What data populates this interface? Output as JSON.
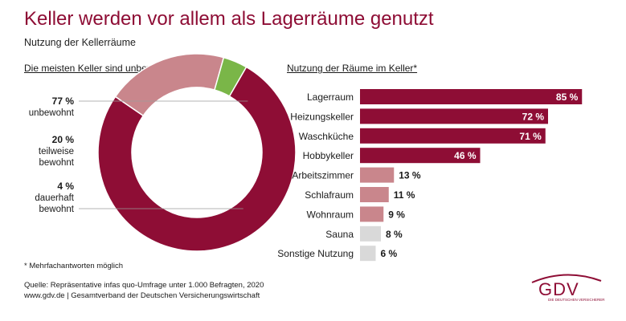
{
  "title": "Keller werden vor allem als Lagerräume genutzt",
  "subtitle": "Nutzung der Kellerräume",
  "colors": {
    "primary": "#8e0d35",
    "light": "#c9868c",
    "green": "#7ab648",
    "grey": "#d9d9d9"
  },
  "chart_data": [
    {
      "type": "pie",
      "title": "Die meisten Keller sind unbewohnt",
      "slices": [
        {
          "pct_label": "77 %",
          "label_lines": [
            "unbewohnt"
          ],
          "value": 77,
          "color": "#8e0d35"
        },
        {
          "pct_label": "20 %",
          "label_lines": [
            "teilweise",
            "bewohnt"
          ],
          "value": 20,
          "color": "#c9868c"
        },
        {
          "pct_label": "4 %",
          "label_lines": [
            "dauerhaft",
            "bewohnt"
          ],
          "value": 4,
          "color": "#7ab648"
        }
      ]
    },
    {
      "type": "bar",
      "title": "Nutzung der Räume im Keller*",
      "xlim": [
        0,
        100
      ],
      "categories": [
        "Lagerraum",
        "Heizungskeller",
        "Waschküche",
        "Hobbykeller",
        "Arbeitszimmer",
        "Schlafraum",
        "Wohnraum",
        "Sauna",
        "Sonstige Nutzung"
      ],
      "values": [
        85,
        72,
        71,
        46,
        13,
        11,
        9,
        8,
        6
      ],
      "value_labels": [
        "85 %",
        "72 %",
        "71 %",
        "46 %",
        "13 %",
        "11 %",
        "9 %",
        "8 %",
        "6 %"
      ],
      "colors": [
        "#8e0d35",
        "#8e0d35",
        "#8e0d35",
        "#8e0d35",
        "#c9868c",
        "#c9868c",
        "#c9868c",
        "#d9d9d9",
        "#d9d9d9"
      ]
    }
  ],
  "footnote": "* Mehrfachantworten möglich",
  "source_line1": "Quelle: Repräsentative infas quo-Umfrage unter 1.000 Befragten, 2020",
  "source_line2": "www.gdv.de | Gesamtverband der Deutschen Versicherungswirtschaft",
  "logo": {
    "text": "GDV",
    "tagline": "DIE DEUTSCHEN VERSICHERER"
  }
}
